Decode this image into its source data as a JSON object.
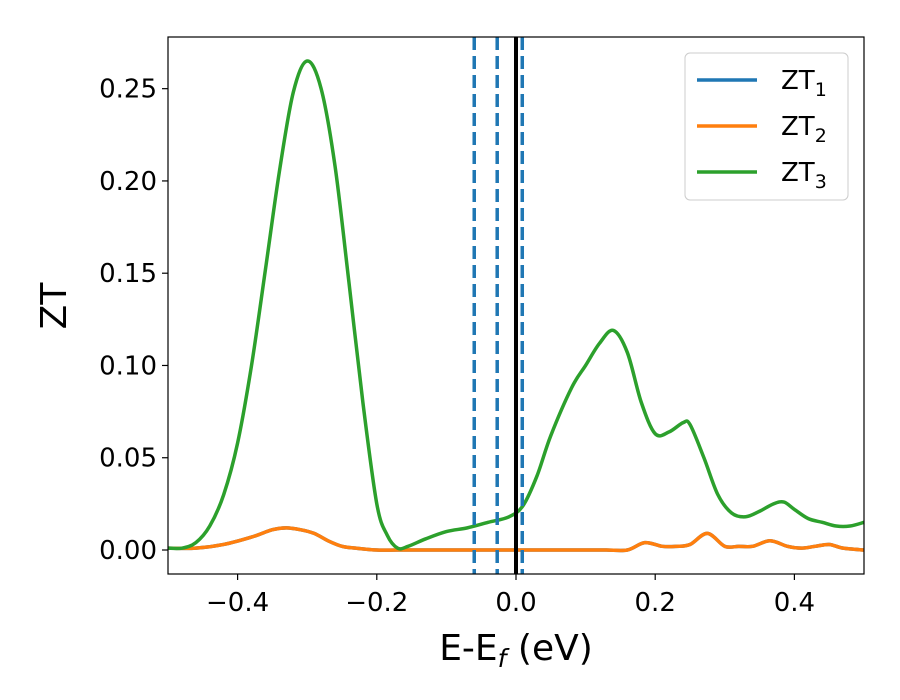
{
  "chart_data": {
    "type": "line",
    "title": "",
    "xlabel": "E-E",
    "xlabel_sub": "f",
    "xlabel_unit": " (eV)",
    "ylabel": "ZT",
    "xlim": [
      -0.5,
      0.5
    ],
    "ylim": [
      -0.013,
      0.278
    ],
    "xticks": [
      -0.4,
      -0.2,
      0.0,
      0.2,
      0.4
    ],
    "xtick_labels": [
      "−0.4",
      "−0.2",
      "0.0",
      "0.2",
      "0.4"
    ],
    "yticks": [
      0.0,
      0.05,
      0.1,
      0.15,
      0.2,
      0.25
    ],
    "ytick_labels": [
      "0.00",
      "0.05",
      "0.10",
      "0.15",
      "0.20",
      "0.25"
    ],
    "grid": false,
    "legend_position": "top-right",
    "series": [
      {
        "name": "ZT",
        "name_sub": "1",
        "color": "#1f77b4",
        "x": [
          -0.5,
          -0.46,
          -0.42,
          -0.38,
          -0.35,
          -0.33,
          -0.31,
          -0.29,
          -0.27,
          -0.25,
          -0.23,
          -0.2,
          -0.17,
          -0.14,
          -0.1,
          -0.06,
          -0.02,
          0.02,
          0.06,
          0.1,
          0.13,
          0.16,
          0.185,
          0.21,
          0.23,
          0.25,
          0.275,
          0.3,
          0.32,
          0.34,
          0.365,
          0.39,
          0.41,
          0.43,
          0.45,
          0.47,
          0.5
        ],
        "y": [
          0.001,
          0.001,
          0.003,
          0.007,
          0.011,
          0.012,
          0.011,
          0.009,
          0.005,
          0.002,
          0.001,
          0.0,
          0.0,
          0.0,
          0.0,
          0.0,
          0.0,
          0.0,
          0.0,
          0.0,
          0.0,
          0.0,
          0.004,
          0.002,
          0.002,
          0.003,
          0.009,
          0.002,
          0.002,
          0.002,
          0.005,
          0.002,
          0.001,
          0.002,
          0.003,
          0.001,
          0.0
        ]
      },
      {
        "name": "ZT",
        "name_sub": "2",
        "color": "#ff7f0e",
        "x": [
          -0.5,
          -0.46,
          -0.42,
          -0.38,
          -0.35,
          -0.33,
          -0.31,
          -0.29,
          -0.27,
          -0.25,
          -0.23,
          -0.2,
          -0.17,
          -0.14,
          -0.1,
          -0.06,
          -0.02,
          0.02,
          0.06,
          0.1,
          0.13,
          0.16,
          0.185,
          0.21,
          0.23,
          0.25,
          0.275,
          0.3,
          0.32,
          0.34,
          0.365,
          0.39,
          0.41,
          0.43,
          0.45,
          0.47,
          0.5
        ],
        "y": [
          0.001,
          0.001,
          0.003,
          0.007,
          0.011,
          0.012,
          0.011,
          0.009,
          0.005,
          0.002,
          0.001,
          0.0,
          0.0,
          0.0,
          0.0,
          0.0,
          0.0,
          0.0,
          0.0,
          0.0,
          0.0,
          0.0,
          0.004,
          0.002,
          0.002,
          0.003,
          0.009,
          0.002,
          0.002,
          0.002,
          0.005,
          0.002,
          0.001,
          0.002,
          0.003,
          0.001,
          0.0
        ]
      },
      {
        "name": "ZT",
        "name_sub": "3",
        "color": "#2ca02c",
        "x": [
          -0.5,
          -0.48,
          -0.46,
          -0.44,
          -0.42,
          -0.4,
          -0.38,
          -0.36,
          -0.34,
          -0.32,
          -0.3,
          -0.28,
          -0.26,
          -0.24,
          -0.22,
          -0.2,
          -0.185,
          -0.17,
          -0.155,
          -0.13,
          -0.1,
          -0.07,
          -0.04,
          -0.01,
          0.01,
          0.03,
          0.05,
          0.08,
          0.1,
          0.12,
          0.14,
          0.16,
          0.18,
          0.2,
          0.22,
          0.24,
          0.25,
          0.27,
          0.29,
          0.31,
          0.33,
          0.35,
          0.37,
          0.385,
          0.4,
          0.42,
          0.44,
          0.46,
          0.48,
          0.5
        ],
        "y": [
          0.001,
          0.001,
          0.004,
          0.013,
          0.03,
          0.058,
          0.1,
          0.152,
          0.205,
          0.248,
          0.265,
          0.25,
          0.208,
          0.145,
          0.08,
          0.025,
          0.008,
          0.001,
          0.002,
          0.006,
          0.01,
          0.012,
          0.015,
          0.018,
          0.024,
          0.04,
          0.062,
          0.088,
          0.1,
          0.112,
          0.119,
          0.107,
          0.08,
          0.063,
          0.064,
          0.069,
          0.068,
          0.05,
          0.03,
          0.02,
          0.018,
          0.021,
          0.025,
          0.026,
          0.022,
          0.017,
          0.015,
          0.013,
          0.013,
          0.015
        ]
      }
    ],
    "vlines": [
      {
        "x": -0.06,
        "style": "dashed",
        "color": "#1f77b4"
      },
      {
        "x": -0.027,
        "style": "dashed",
        "color": "#1f77b4"
      },
      {
        "x": 0.009,
        "style": "dashed",
        "color": "#1f77b4"
      },
      {
        "x": 0.0,
        "style": "solid",
        "color": "#000000"
      }
    ]
  }
}
